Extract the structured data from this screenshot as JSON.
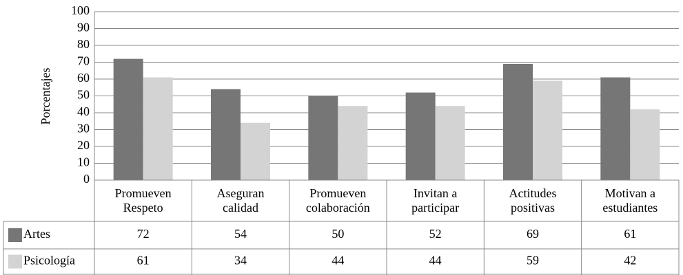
{
  "chart_data": {
    "type": "bar",
    "y_label": "Porcentajes",
    "categories": [
      "Promueven Respeto",
      "Aseguran calidad",
      "Promueven colaboración",
      "Invitan a participar",
      "Actitudes positivas",
      "Motivan a estudiantes"
    ],
    "series": [
      {
        "name": "Artes",
        "color": "#767676",
        "values": [
          72,
          54,
          50,
          52,
          69,
          61
        ]
      },
      {
        "name": "Psicología",
        "color": "#d3d3d3",
        "values": [
          61,
          34,
          44,
          44,
          59,
          42
        ]
      }
    ],
    "ylim": [
      0,
      100
    ],
    "yticks": [
      0,
      10,
      20,
      30,
      40,
      50,
      60,
      70,
      80,
      90,
      100
    ],
    "grid": true
  }
}
